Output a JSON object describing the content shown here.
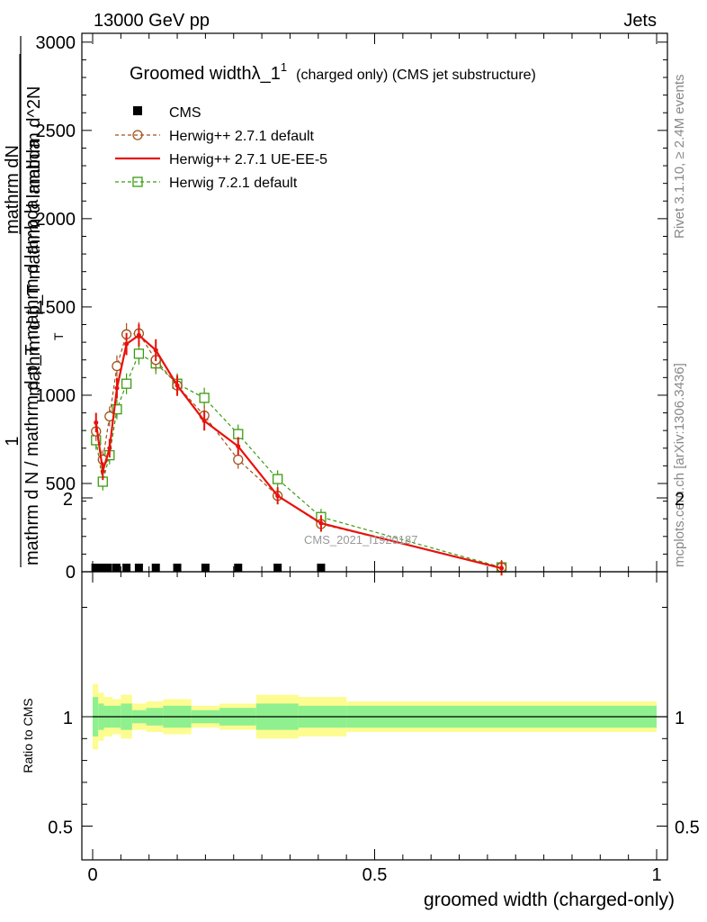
{
  "header": {
    "left": "13000 GeV pp",
    "right": "Jets"
  },
  "side_labels": {
    "rivet": "Rivet 3.1.10, ≥ 2.4M events",
    "mcplots": "mcplots.cern.ch [arXiv:1306.3436]"
  },
  "watermark": "CMS_2021_I1920187",
  "chart_data": [
    {
      "type": "line",
      "title": "Groomed width",
      "title_symbol": "λ_1",
      "title_superscript": "1",
      "title_suffix": "(charged only) (CMS jet substructure)",
      "ylabel_denominator": "mathrm d N / mathrm d p_T mathrm d lambda",
      "ylabel_numerator": "mathrm d^2N",
      "ylabel_fraction_parts": [
        "1",
        "mathrm dN",
        "mathrm d p_T mathrm d lambda",
        "T"
      ],
      "xlim": [
        0,
        1
      ],
      "ylim": [
        0,
        3050
      ],
      "y_ticks": [
        0,
        500,
        1000,
        1500,
        2000,
        2500,
        3000
      ],
      "y_tick_labels": [
        "0",
        "500",
        "1000",
        "1500",
        "2000",
        "2500",
        "3000"
      ],
      "legend_position": "top-left",
      "series": [
        {
          "name": "CMS",
          "style": "markers-square",
          "color": "#000000",
          "x": [
            0.005,
            0.015,
            0.027,
            0.042,
            0.06,
            0.082,
            0.112,
            0.15,
            0.2,
            0.258,
            0.328,
            0.405
          ],
          "y": [
            0,
            0,
            0,
            0,
            0,
            0,
            0,
            0,
            0,
            0,
            0,
            0
          ]
        },
        {
          "name": "Herwig++ 2.7.1 default",
          "style": "dashed-circle",
          "color": "#a0521a",
          "x": [
            0.006,
            0.018,
            0.03,
            0.043,
            0.06,
            0.082,
            0.112,
            0.15,
            0.198,
            0.258,
            0.328,
            0.405,
            0.725
          ],
          "y": [
            795,
            635,
            880,
            1165,
            1345,
            1350,
            1200,
            1055,
            885,
            635,
            430,
            270,
            25
          ]
        },
        {
          "name": "Herwig++ 2.7.1 UE-EE-5",
          "style": "solid",
          "color": "#e8120c",
          "x": [
            0.006,
            0.018,
            0.03,
            0.043,
            0.06,
            0.082,
            0.112,
            0.15,
            0.198,
            0.258,
            0.328,
            0.405,
            0.725
          ],
          "y": [
            845,
            570,
            700,
            1040,
            1290,
            1340,
            1255,
            1055,
            855,
            710,
            430,
            275,
            20
          ]
        },
        {
          "name": "Herwig 7.2.1 default",
          "style": "dashed-square",
          "color": "#3a9c10",
          "x": [
            0.006,
            0.018,
            0.03,
            0.043,
            0.06,
            0.082,
            0.112,
            0.15,
            0.198,
            0.258,
            0.328,
            0.405,
            0.725
          ],
          "y": [
            745,
            510,
            660,
            920,
            1065,
            1235,
            1180,
            1065,
            985,
            780,
            525,
            310,
            25
          ]
        }
      ]
    },
    {
      "type": "line",
      "ylabel": "Ratio to CMS",
      "xlabel": "groomed width (charged-only)",
      "xlim": [
        0,
        1
      ],
      "ylim": [
        0.4,
        2.3
      ],
      "y_ticks": [
        0.5,
        1,
        2
      ],
      "y_tick_labels": [
        "0.5",
        "1",
        "2"
      ],
      "x_ticks": [
        0,
        0.5,
        1
      ],
      "x_tick_labels": [
        "0",
        "0.5",
        "1"
      ],
      "band_colors": {
        "inner": "#8ef08e",
        "outer": "#fcfc90"
      },
      "bins": [
        0,
        0.01,
        0.02,
        0.035,
        0.05,
        0.07,
        0.095,
        0.125,
        0.175,
        0.225,
        0.29,
        0.365,
        0.45,
        1.0
      ],
      "outer_band": [
        0.15,
        0.11,
        0.09,
        0.08,
        0.1,
        0.06,
        0.07,
        0.08,
        0.05,
        0.06,
        0.1,
        0.09,
        0.07
      ],
      "inner_band": [
        0.09,
        0.06,
        0.05,
        0.05,
        0.06,
        0.03,
        0.04,
        0.05,
        0.03,
        0.04,
        0.06,
        0.05,
        0.05
      ]
    }
  ]
}
